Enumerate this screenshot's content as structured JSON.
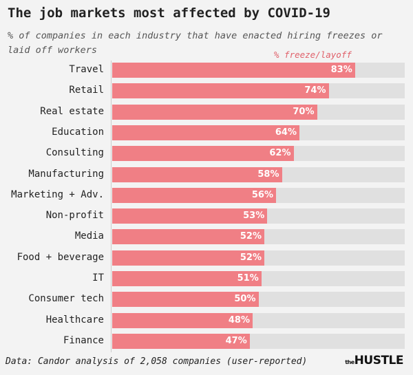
{
  "chart_data": {
    "type": "bar",
    "orientation": "horizontal",
    "title": "The job markets most affected by COVID-19",
    "subtitle": "% of companies in each industry that have enacted hiring freezes or laid off workers",
    "legend": "% freeze/layoff",
    "categories": [
      "Travel",
      "Retail",
      "Real estate",
      "Education",
      "Consulting",
      "Manufacturing",
      "Marketing + Adv.",
      "Non-profit",
      "Media",
      "Food + beverage",
      "IT",
      "Consumer tech",
      "Healthcare",
      "Finance"
    ],
    "values": [
      83,
      74,
      70,
      64,
      62,
      58,
      56,
      53,
      52,
      52,
      51,
      50,
      48,
      47
    ],
    "xlim": [
      0,
      100
    ],
    "grid": false,
    "colors": {
      "bar": "#f07f85",
      "track": "#e0e0e0",
      "background": "#f3f3f3",
      "legend": "#e0606a"
    }
  },
  "footer": {
    "source": "Data: Candor analysis of 2,058 companies (user-reported)",
    "logo_small": "the",
    "logo": "HUSTLE"
  }
}
